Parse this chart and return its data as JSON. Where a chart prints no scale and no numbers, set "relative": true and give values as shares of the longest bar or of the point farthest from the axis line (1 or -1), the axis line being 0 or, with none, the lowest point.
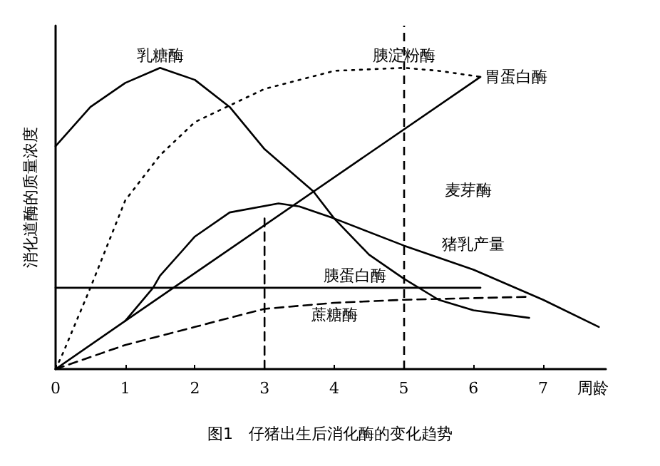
{
  "chart_data": {
    "type": "line",
    "relative": true,
    "title": "图1　仔猪出生后消化酶的变化趋势",
    "xlabel": "周龄",
    "ylabel": "消化道酶的质量浓度",
    "xlim": [
      0,
      7.9
    ],
    "xticks": [
      0,
      1,
      2,
      3,
      4,
      5,
      6,
      7
    ],
    "grid": false,
    "legend": false,
    "marker": "none",
    "series": [
      {
        "name": "乳糖酶",
        "color": "#000000",
        "line_style": "solid",
        "x": [
          0,
          0.5,
          1,
          1.5,
          2,
          2.5,
          3,
          3.7,
          4,
          4.5,
          5,
          5.5,
          6,
          6.8
        ],
        "values": [
          0.74,
          0.87,
          0.95,
          1.0,
          0.96,
          0.87,
          0.73,
          0.59,
          0.5,
          0.38,
          0.3,
          0.23,
          0.195,
          0.17
        ]
      },
      {
        "name": "胰淀粉酶",
        "color": "#000000",
        "line_style": "dotted",
        "x": [
          0,
          0.1,
          0.5,
          1,
          1.5,
          2,
          3,
          4,
          5,
          5.5,
          6.1
        ],
        "values": [
          0,
          0.05,
          0.27,
          0.56,
          0.71,
          0.82,
          0.93,
          0.99,
          1.0,
          0.99,
          0.97
        ]
      },
      {
        "name": "胃蛋白酶",
        "color": "#000000",
        "line_style": "solid",
        "x": [
          0,
          1,
          6.1
        ],
        "values": [
          0,
          0.16,
          0.97
        ]
      },
      {
        "name": "猪乳产量",
        "color": "#000000",
        "line_style": "solid",
        "x": [
          1,
          1.4,
          1.5,
          2,
          2.5,
          3.2,
          3.5,
          4,
          5,
          6,
          7,
          7.8
        ],
        "values": [
          0.16,
          0.27,
          0.31,
          0.44,
          0.52,
          0.55,
          0.54,
          0.5,
          0.41,
          0.33,
          0.23,
          0.14
        ]
      },
      {
        "name": "胰蛋白酶",
        "color": "#000000",
        "line_style": "solid",
        "x": [
          0,
          4.3,
          6.1
        ],
        "values": [
          0.27,
          0.27,
          0.27
        ]
      },
      {
        "name": "蔗糖酶",
        "color": "#000000",
        "line_style": "dashed",
        "x": [
          0,
          1,
          2,
          3,
          4,
          5,
          6.8
        ],
        "values": [
          0,
          0.08,
          0.14,
          0.2,
          0.22,
          0.23,
          0.24
        ]
      },
      {
        "color": "#000000",
        "line_style": "dashed",
        "x": [
          3,
          3
        ],
        "values": [
          0,
          0.5
        ]
      }
    ],
    "ref_lines": [
      {
        "axis": "x",
        "value": 5,
        "color": "#000000",
        "line_style": "dashed"
      }
    ],
    "annotations": [
      "麦芽酶"
    ]
  }
}
